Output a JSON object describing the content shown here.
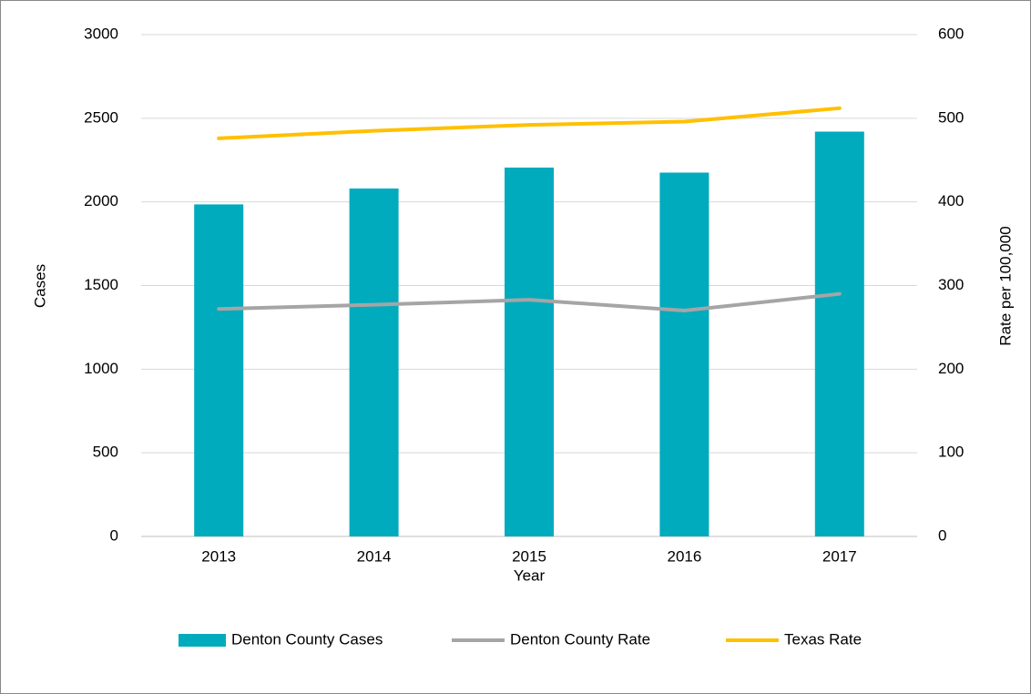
{
  "chart_data": {
    "type": "bar",
    "x_label": "Year",
    "y_label": "Cases",
    "y2_label": "Rate per 100,000",
    "categories": [
      "2013",
      "2014",
      "2015",
      "2016",
      "2017"
    ],
    "series": [
      {
        "name": "Denton County Cases",
        "type": "bar",
        "color": "#00abbd",
        "values": [
          1985,
          2080,
          2205,
          2175,
          2420
        ]
      },
      {
        "name": "Denton County Rate",
        "type": "line",
        "axis": "y2",
        "color": "#a5a5a5",
        "values": [
          272,
          277,
          283,
          270,
          290
        ]
      },
      {
        "name": "Texas Rate",
        "type": "line",
        "axis": "y2",
        "color": "#ffc000",
        "values": [
          476,
          485,
          492,
          496,
          512
        ]
      }
    ],
    "ylim": [
      0,
      3000
    ],
    "yticks": [
      0,
      500,
      1000,
      1500,
      2000,
      2500,
      3000
    ],
    "y2lim": [
      0,
      600
    ],
    "y2ticks": [
      0,
      100,
      200,
      300,
      400,
      500,
      600
    ],
    "grid": true,
    "legend": "bottom"
  }
}
